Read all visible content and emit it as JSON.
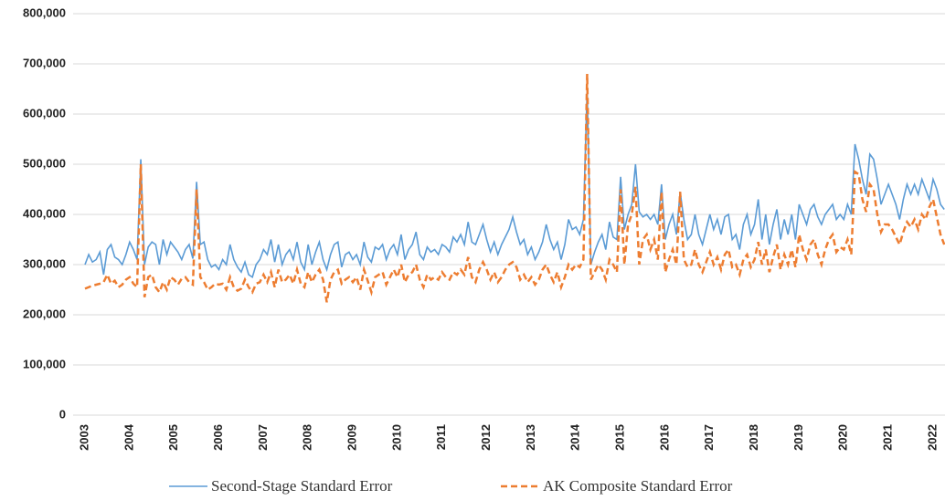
{
  "chart_data": {
    "type": "line",
    "categories": [
      "2003",
      null,
      null,
      null,
      null,
      null,
      null,
      null,
      null,
      null,
      null,
      null,
      "2004",
      null,
      null,
      null,
      null,
      null,
      null,
      null,
      null,
      null,
      null,
      null,
      "2005",
      null,
      null,
      null,
      null,
      null,
      null,
      null,
      null,
      null,
      null,
      null,
      "2006",
      null,
      null,
      null,
      null,
      null,
      null,
      null,
      null,
      null,
      null,
      null,
      "2007",
      null,
      null,
      null,
      null,
      null,
      null,
      null,
      null,
      null,
      null,
      null,
      "2008",
      null,
      null,
      null,
      null,
      null,
      null,
      null,
      null,
      null,
      null,
      null,
      "2009",
      null,
      null,
      null,
      null,
      null,
      null,
      null,
      null,
      null,
      null,
      null,
      "2010",
      null,
      null,
      null,
      null,
      null,
      null,
      null,
      null,
      null,
      null,
      null,
      "2011",
      null,
      null,
      null,
      null,
      null,
      null,
      null,
      null,
      null,
      null,
      null,
      "2012",
      null,
      null,
      null,
      null,
      null,
      null,
      null,
      null,
      null,
      null,
      null,
      "2013",
      null,
      null,
      null,
      null,
      null,
      null,
      null,
      null,
      null,
      null,
      null,
      "2014",
      null,
      null,
      null,
      null,
      null,
      null,
      null,
      null,
      null,
      null,
      null,
      "2015",
      null,
      null,
      null,
      null,
      null,
      null,
      null,
      null,
      null,
      null,
      null,
      "2016",
      null,
      null,
      null,
      null,
      null,
      null,
      null,
      null,
      null,
      null,
      null,
      "2017",
      null,
      null,
      null,
      null,
      null,
      null,
      null,
      null,
      null,
      null,
      null,
      "2018",
      null,
      null,
      null,
      null,
      null,
      null,
      null,
      null,
      null,
      null,
      null,
      "2019",
      null,
      null,
      null,
      null,
      null,
      null,
      null,
      null,
      null,
      null,
      null,
      "2020",
      null,
      null,
      null,
      null,
      null,
      null,
      null,
      null,
      null,
      null,
      null,
      "2021",
      null,
      null,
      null,
      null,
      null,
      null,
      null,
      null,
      null,
      null,
      null,
      "2022",
      null,
      null,
      null
    ],
    "series": [
      {
        "name": "Second-Stage Standard Error",
        "color": "#5b9bd5",
        "dashed": false,
        "values": [
          300000,
          320000,
          305000,
          310000,
          325000,
          280000,
          330000,
          340000,
          315000,
          310000,
          300000,
          320000,
          345000,
          330000,
          310000,
          510000,
          300000,
          335000,
          345000,
          340000,
          300000,
          350000,
          320000,
          345000,
          335000,
          325000,
          310000,
          330000,
          340000,
          312000,
          465000,
          340000,
          345000,
          310000,
          295000,
          300000,
          290000,
          310000,
          300000,
          340000,
          310000,
          295000,
          285000,
          305000,
          280000,
          275000,
          300000,
          310000,
          330000,
          320000,
          350000,
          305000,
          340000,
          300000,
          320000,
          330000,
          310000,
          345000,
          305000,
          290000,
          340000,
          300000,
          325000,
          345000,
          310000,
          290000,
          320000,
          340000,
          345000,
          295000,
          320000,
          325000,
          310000,
          320000,
          300000,
          345000,
          315000,
          305000,
          335000,
          330000,
          340000,
          310000,
          330000,
          340000,
          320000,
          360000,
          310000,
          330000,
          340000,
          365000,
          320000,
          310000,
          335000,
          325000,
          330000,
          320000,
          340000,
          335000,
          325000,
          355000,
          345000,
          360000,
          340000,
          385000,
          345000,
          340000,
          360000,
          380000,
          350000,
          325000,
          345000,
          320000,
          340000,
          355000,
          370000,
          395000,
          365000,
          340000,
          350000,
          320000,
          335000,
          310000,
          325000,
          345000,
          380000,
          350000,
          330000,
          345000,
          310000,
          340000,
          390000,
          370000,
          375000,
          360000,
          390000,
          650000,
          300000,
          325000,
          345000,
          360000,
          330000,
          385000,
          355000,
          350000,
          475000,
          370000,
          400000,
          420000,
          500000,
          405000,
          395000,
          400000,
          390000,
          400000,
          380000,
          460000,
          350000,
          380000,
          400000,
          360000,
          445000,
          390000,
          350000,
          360000,
          400000,
          360000,
          340000,
          370000,
          400000,
          370000,
          390000,
          360000,
          395000,
          400000,
          350000,
          360000,
          330000,
          380000,
          400000,
          360000,
          380000,
          430000,
          350000,
          400000,
          340000,
          380000,
          410000,
          350000,
          390000,
          360000,
          400000,
          350000,
          420000,
          400000,
          380000,
          410000,
          420000,
          395000,
          380000,
          400000,
          410000,
          420000,
          390000,
          400000,
          390000,
          420000,
          400000,
          540000,
          510000,
          470000,
          440000,
          520000,
          510000,
          470000,
          420000,
          440000,
          460000,
          440000,
          420000,
          390000,
          430000,
          460000,
          440000,
          460000,
          440000,
          470000,
          450000,
          430000,
          470000,
          450000,
          420000,
          410000
        ]
      },
      {
        "name": "AK Composite Standard Error",
        "color": "#ed7d31",
        "dashed": true,
        "values": [
          252000,
          255000,
          258000,
          260000,
          262000,
          265000,
          280000,
          262000,
          268000,
          255000,
          260000,
          270000,
          275000,
          262000,
          255000,
          500000,
          235000,
          275000,
          280000,
          255000,
          245000,
          265000,
          250000,
          275000,
          270000,
          260000,
          272000,
          275000,
          265000,
          260000,
          450000,
          275000,
          265000,
          250000,
          255000,
          262000,
          260000,
          262000,
          250000,
          275000,
          255000,
          248000,
          252000,
          270000,
          255000,
          245000,
          262000,
          265000,
          280000,
          265000,
          285000,
          255000,
          290000,
          265000,
          270000,
          280000,
          262000,
          290000,
          262000,
          255000,
          285000,
          265000,
          280000,
          290000,
          270000,
          225000,
          270000,
          285000,
          290000,
          262000,
          270000,
          275000,
          265000,
          275000,
          250000,
          290000,
          268000,
          245000,
          275000,
          280000,
          285000,
          260000,
          275000,
          290000,
          275000,
          300000,
          265000,
          280000,
          285000,
          300000,
          270000,
          255000,
          280000,
          270000,
          275000,
          270000,
          285000,
          275000,
          270000,
          285000,
          280000,
          290000,
          280000,
          315000,
          275000,
          265000,
          290000,
          305000,
          290000,
          270000,
          285000,
          265000,
          275000,
          290000,
          300000,
          305000,
          295000,
          270000,
          280000,
          265000,
          275000,
          260000,
          270000,
          290000,
          300000,
          280000,
          265000,
          285000,
          255000,
          275000,
          300000,
          290000,
          300000,
          295000,
          310000,
          680000,
          270000,
          285000,
          300000,
          290000,
          270000,
          310000,
          300000,
          285000,
          450000,
          300000,
          380000,
          400000,
          455000,
          300000,
          350000,
          360000,
          330000,
          350000,
          310000,
          445000,
          285000,
          310000,
          330000,
          300000,
          445000,
          310000,
          295000,
          300000,
          330000,
          300000,
          285000,
          305000,
          325000,
          300000,
          315000,
          290000,
          320000,
          330000,
          295000,
          300000,
          280000,
          310000,
          320000,
          295000,
          310000,
          345000,
          300000,
          330000,
          285000,
          315000,
          340000,
          290000,
          320000,
          300000,
          330000,
          295000,
          360000,
          330000,
          310000,
          340000,
          350000,
          320000,
          300000,
          330000,
          350000,
          360000,
          325000,
          335000,
          330000,
          350000,
          320000,
          485000,
          480000,
          430000,
          405000,
          460000,
          450000,
          400000,
          365000,
          380000,
          380000,
          370000,
          355000,
          340000,
          365000,
          385000,
          375000,
          390000,
          370000,
          400000,
          390000,
          415000,
          430000,
          395000,
          360000,
          340000
        ]
      }
    ],
    "ylim": [
      0,
      800000
    ],
    "yticks": [
      0,
      {
        "value": 100000,
        "label": "100,000"
      },
      {
        "value": 200000,
        "label": "200,000"
      },
      {
        "value": 300000,
        "label": "300,000"
      },
      {
        "value": 400000,
        "label": "400,000"
      },
      {
        "value": 500000,
        "label": "500,000"
      },
      {
        "value": 600000,
        "label": "600,000"
      },
      {
        "value": 700000,
        "label": "700,000"
      },
      {
        "value": 800000,
        "label": "800,000"
      }
    ],
    "grid": true,
    "legend": "bottom"
  }
}
